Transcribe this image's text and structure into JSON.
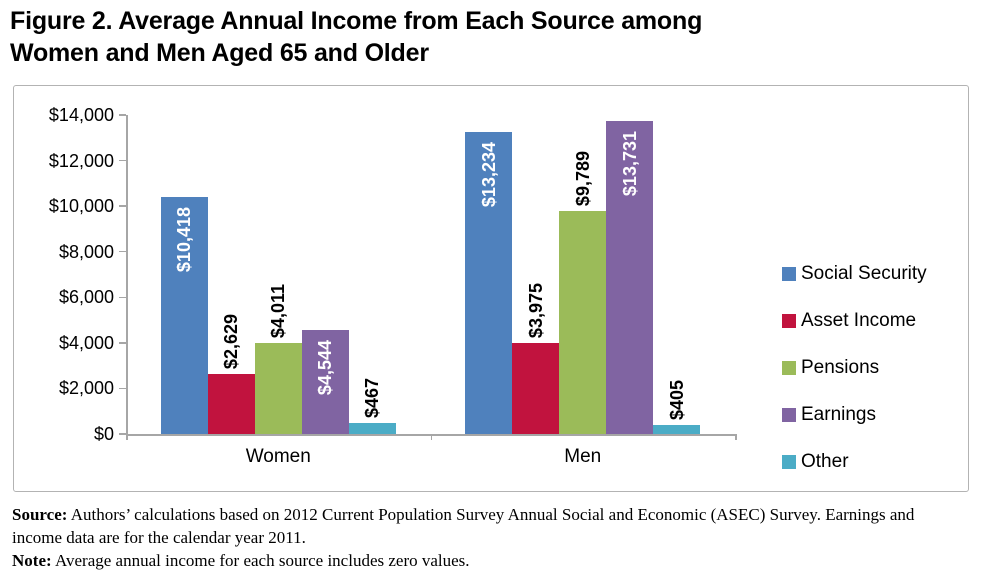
{
  "header": {
    "title_line1": "Figure 2. Average Annual Income from Each Source among",
    "title_line2": "Women and Men Aged 65 and Older"
  },
  "chart_data": {
    "type": "bar",
    "title": "Figure 2. Average Annual Income from Each Source among Women and Men Aged 65 and Older",
    "categories": [
      "Women",
      "Men"
    ],
    "series": [
      {
        "name": "Social Security",
        "color": "#4F81BD",
        "values": [
          10418,
          13234
        ],
        "labels": [
          "$10,418",
          "$13,234"
        ],
        "label_inside": true,
        "label_color": "#FFFFFF"
      },
      {
        "name": "Asset Income",
        "color": "#C1133E",
        "values": [
          2629,
          3975
        ],
        "labels": [
          "$2,629",
          "$3,975"
        ],
        "label_inside": false,
        "label_color": "#000000"
      },
      {
        "name": "Pensions",
        "color": "#9BBB59",
        "values": [
          4011,
          9789
        ],
        "labels": [
          "$4,011",
          "$9,789"
        ],
        "label_inside": false,
        "label_color": "#000000"
      },
      {
        "name": "Earnings",
        "color": "#8064A2",
        "values": [
          4544,
          13731
        ],
        "labels": [
          "$4,544",
          "$13,731"
        ],
        "label_inside": true,
        "label_color": "#FFFFFF"
      },
      {
        "name": "Other",
        "color": "#4BACC6",
        "values": [
          467,
          405
        ],
        "labels": [
          "$467",
          "$405"
        ],
        "label_inside": false,
        "label_color": "#000000"
      }
    ],
    "ylim": [
      0,
      14000
    ],
    "ytick_step": 2000,
    "ytick_labels": [
      "$0",
      "$2,000",
      "$4,000",
      "$6,000",
      "$8,000",
      "$10,000",
      "$12,000",
      "$14,000"
    ],
    "xlabel": "",
    "ylabel": "",
    "grid": false,
    "legend_position": "right",
    "bar_label_rotation": 90,
    "axis_color": "#A6A6A6"
  },
  "footer": {
    "source_label": "Source:",
    "source_text": " Authors’ calculations based on 2012 Current Population Survey Annual Social and Economic (ASEC) Survey. Earnings and income data are for the calendar year 2011.",
    "note_label": "Note:",
    "note_text": " Average annual income for each source includes zero values."
  }
}
